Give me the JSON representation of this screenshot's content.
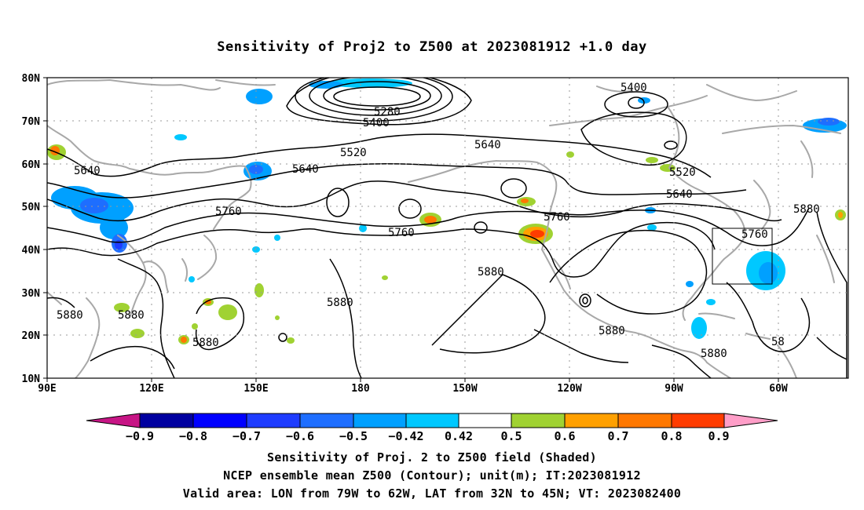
{
  "title": "Sensitivity of Proj2 to Z500 at 2023081912 +1.0 day",
  "lat_labels": [
    "80N",
    "70N",
    "60N",
    "50N",
    "40N",
    "30N",
    "20N",
    "10N"
  ],
  "lon_labels": [
    "90E",
    "120E",
    "150E",
    "180",
    "150W",
    "120W",
    "90W",
    "60W"
  ],
  "contour_labels": [
    "5280",
    "5400",
    "5400",
    "5520",
    "5520",
    "5640",
    "5640",
    "5640",
    "5640",
    "5760",
    "5760",
    "5760",
    "5760",
    "5880",
    "5880",
    "5880",
    "5880",
    "5880",
    "5880",
    "5880",
    "5880",
    "58"
  ],
  "colorbar": {
    "labels": [
      "−0.9",
      "−0.8",
      "−0.7",
      "−0.6",
      "−0.5",
      "−0.42",
      "0.42",
      "0.5",
      "0.6",
      "0.7",
      "0.8",
      "0.9"
    ],
    "colors": [
      "#0000a0",
      "#0000ff",
      "#1e3cff",
      "#1e6eff",
      "#00a0ff",
      "#00c8ff",
      "#ffffff",
      "#a0d232",
      "#ffa000",
      "#ff7800",
      "#ff3c00",
      "#ff0000"
    ],
    "low_end_color": "#c71585",
    "high_end_color": "#ff9ec8"
  },
  "captions": {
    "line1": "Sensitivity of Proj. 2 to Z500 field (Shaded)",
    "line2": "NCEP ensemble mean Z500 (Contour); unit(m); IT:2023081912",
    "line3": "Valid area: LON from 79W to 62W, LAT from 32N to 45N; VT: 2023082400"
  },
  "colors": {
    "land": "#a8a8a8",
    "contour": "#000000",
    "grid": "#999999"
  }
}
